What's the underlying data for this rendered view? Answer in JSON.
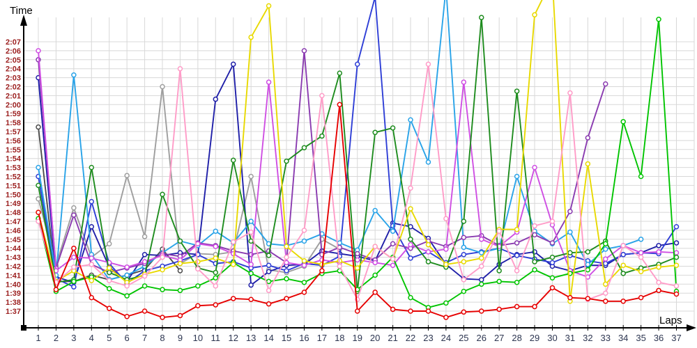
{
  "chart_data": {
    "type": "line",
    "title": "",
    "xlabel": "Laps",
    "ylabel": "Time",
    "x": [
      1,
      2,
      3,
      4,
      5,
      6,
      7,
      8,
      9,
      10,
      11,
      12,
      13,
      14,
      15,
      16,
      17,
      18,
      19,
      20,
      21,
      22,
      23,
      24,
      25,
      26,
      27,
      28,
      29,
      30,
      31,
      32,
      33,
      34,
      35,
      36,
      37
    ],
    "x_tick_labels": [
      "1",
      "2",
      "3",
      "4",
      "5",
      "6",
      "7",
      "8",
      "9",
      "10",
      "11",
      "12",
      "13",
      "14",
      "15",
      "16",
      "17",
      "18",
      "19",
      "20",
      "21",
      "22",
      "23",
      "24",
      "25",
      "26",
      "27",
      "28",
      "29",
      "30",
      "31",
      "32",
      "33",
      "34",
      "35",
      "36",
      "37"
    ],
    "y_tick_labels": [
      "1:37",
      "1:38",
      "1:39",
      "1:40",
      "1:41",
      "1:42",
      "1:43",
      "1:44",
      "1:45",
      "1:46",
      "1:47",
      "1:48",
      "1:49",
      "1:50",
      "1:51",
      "1:52",
      "1:53",
      "1:54",
      "1:55",
      "1:56",
      "1:57",
      "1:58",
      "1:59",
      "2:00",
      "2:01",
      "2:02",
      "2:03",
      "2:04",
      "2:05",
      "2:06",
      "2:07"
    ],
    "y_axis": {
      "min_seconds": 97,
      "max_seconds": 127,
      "min_label": "1:37",
      "max_label": "2:07",
      "tick_step_seconds": 1,
      "grid": true
    },
    "note": "lap times in seconds; values above 129.8 are clipped off the top of the plot in the original image",
    "style": {
      "grid_color": "#d8d8d8",
      "axis_color": "#000000",
      "y_label_color": "#9c2020",
      "x_label_color": "#2c3550",
      "marker_fill": "#ffffff"
    },
    "series": [
      {
        "name": "black",
        "color": "#4d4d4d",
        "values_seconds": [
          117.5,
          100.3,
          100.3,
          101,
          100.5,
          101,
          101.6,
          103.9,
          101.5
        ]
      },
      {
        "name": "gray",
        "color": "#9e9e9e",
        "values_seconds": [
          109.5,
          102.1,
          108.5,
          103,
          104.5,
          112.1,
          105.3,
          122,
          102.3,
          103.4,
          103.3,
          103.6,
          112,
          101.6,
          101.3,
          102,
          105,
          103.9
        ]
      },
      {
        "name": "navy",
        "color": "#1f1fa8",
        "values_seconds": [
          123,
          100.8,
          100.2,
          106.4,
          101.9,
          100.3,
          103.3,
          103.2,
          103.5,
          103.3,
          120.6,
          124.5,
          99.9,
          101.4,
          102.1,
          102.2,
          103.7,
          103.4,
          103.1,
          102.6,
          106.8,
          106.4,
          105.1,
          102.2,
          100.6,
          100.5,
          102.2,
          103.3,
          103.6,
          102,
          101.5,
          102.1,
          102.1,
          103.3,
          103.5,
          104.3,
          104.6
        ]
      },
      {
        "name": "blue",
        "color": "#2e3ed6",
        "values_seconds": [
          112,
          100.6,
          99.7,
          109.2,
          102.3,
          100.1,
          101.5,
          102,
          102.6,
          103.3,
          102.3,
          102.5,
          101.8,
          102.1,
          101.5,
          102.3,
          102.1,
          103.1,
          124.5,
          132,
          106.5,
          102.9,
          103.6,
          102.4,
          103.3,
          103.6,
          104,
          103.2,
          102.8,
          102.4,
          103.2,
          102.6,
          102.3,
          103.3,
          103.5,
          103.4,
          106.4
        ]
      },
      {
        "name": "cyan",
        "color": "#29a3e8",
        "values_seconds": [
          113,
          101,
          123.3,
          103.3,
          100.5,
          101,
          102,
          103.5,
          104.8,
          104.3,
          105.9,
          104.6,
          107,
          104.5,
          104.3,
          104.8,
          105.6,
          104.6,
          103.8,
          108.2,
          105.9,
          118.3,
          113.6,
          133,
          104.1,
          103.5,
          104,
          112,
          105.9,
          104.5,
          105.8,
          102.2,
          103.9,
          104.3,
          105
        ]
      },
      {
        "name": "purple",
        "color": "#8a3bb0",
        "values_seconds": [
          125,
          101.8,
          107.7,
          102.2,
          101.3,
          101.8,
          102.3,
          103.4,
          103.1,
          104.6,
          104.3,
          103.7,
          103.3,
          103.7,
          102.4,
          126,
          103.3,
          104.1,
          103.4,
          102.7,
          104.5,
          104,
          104.8,
          104.2,
          105.2,
          105.4,
          104.3,
          104.6,
          105.5,
          104.6,
          108.1,
          116.3,
          122.3
        ]
      },
      {
        "name": "magenta",
        "color": "#cf4fe3",
        "values_seconds": [
          126,
          101.5,
          103,
          102.9,
          102.4,
          101.9,
          102.5,
          103.2,
          102.7,
          104.5,
          104.2,
          103.4,
          102.2,
          122.5,
          102.4,
          102.1,
          102.7,
          102.4,
          102.7,
          102.4,
          102.1,
          104.4,
          103.6,
          103.9,
          122.5,
          105,
          104.2,
          105.8,
          113,
          106.6,
          101.5,
          100.8,
          102.8,
          104.3,
          103.5,
          103.6,
          103.5
        ]
      },
      {
        "name": "forest",
        "color": "#1e8c1e",
        "values_seconds": [
          111,
          100.2,
          100.5,
          113,
          101.3,
          100.5,
          101,
          110,
          104.8,
          101.8,
          101.3,
          113.8,
          104.8,
          103.2,
          113.7,
          115.2,
          116.5,
          123.5,
          99.2,
          116.9,
          117.4,
          105,
          102.5,
          101.9,
          107,
          129.7,
          101.5,
          121.5,
          102.5,
          103,
          103.5,
          103.6,
          104.8,
          101.2,
          101.8,
          102.2,
          103
        ]
      },
      {
        "name": "green",
        "color": "#00c400",
        "values_seconds": [
          107.3,
          99.2,
          100.3,
          100.8,
          99.5,
          98.7,
          99.8,
          99.4,
          99.3,
          99.8,
          100.7,
          102.4,
          101.2,
          100.3,
          100.6,
          100.2,
          101.2,
          101.5,
          99.4,
          101,
          103,
          98.5,
          97.4,
          97.9,
          99.2,
          100,
          100.3,
          100.2,
          101.6,
          100.7,
          101.2,
          101.6,
          104.5,
          118.1,
          112,
          129.5,
          99.2
        ]
      },
      {
        "name": "yellow",
        "color": "#e8d900",
        "values_seconds": [
          108,
          100.3,
          101.5,
          100.4,
          101.8,
          100.2,
          101.1,
          101.6,
          102.3,
          102.5,
          102.9,
          102.2,
          127.5,
          131,
          104.2,
          102.6,
          102.2,
          102.6,
          101.8,
          104.2,
          102.8,
          108.4,
          104.4,
          102.2,
          102.5,
          102.9,
          106.1,
          106.1,
          130,
          134,
          98.1,
          113.4,
          100,
          102.1,
          101.4,
          101.9,
          102.1
        ]
      },
      {
        "name": "pink",
        "color": "#ff9cc8",
        "values_seconds": [
          107,
          100.2,
          101.9,
          102.2,
          100.4,
          99.8,
          100.9,
          103,
          124,
          101.7,
          99.8,
          104.7,
          105.8,
          99.3,
          103,
          106,
          121,
          102,
          98.3,
          104.2,
          102.8,
          110.7,
          124.5,
          107.3,
          100.5,
          102,
          105.9,
          101.5,
          106.5,
          107,
          121.3,
          98.3,
          99,
          104.3,
          103,
          100.2,
          99.8
        ]
      },
      {
        "name": "red",
        "color": "#e60000",
        "values_seconds": [
          108,
          99.4,
          104,
          98.5,
          97.3,
          96.4,
          97,
          96.3,
          96.5,
          97.6,
          97.7,
          98.4,
          98.3,
          97.8,
          98.4,
          99.1,
          101.5,
          120,
          97,
          99.1,
          97.2,
          97,
          97,
          96.3,
          96.9,
          97,
          97.2,
          97.5,
          97.5,
          99.6,
          98.5,
          98.4,
          98.1,
          98.1,
          98.5,
          99.3,
          98.9
        ]
      }
    ],
    "legend": "none"
  }
}
